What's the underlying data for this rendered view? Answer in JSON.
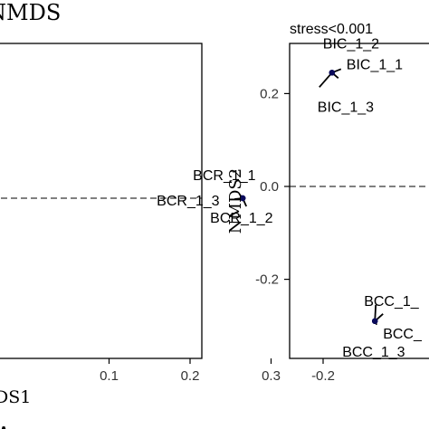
{
  "chart_data": [
    {
      "type": "scatter",
      "title": "NMDS",
      "subtitle": "",
      "xlabel": "DS1",
      "ylabel": "",
      "xlim": [
        -0.02,
        0.32
      ],
      "x_ticks": [
        0.1,
        0.2,
        0.3
      ],
      "x_tick_labels": [
        "0.1",
        "0.2",
        "0.3"
      ],
      "y_ticks": [],
      "y_tick_labels": [],
      "reference_lines": [
        {
          "axis": "y",
          "value": 0,
          "style": "dashed"
        }
      ],
      "grid": false,
      "points": [
        {
          "label": "BCR_1_1",
          "x": 0.265,
          "y": 0.0
        },
        {
          "label": "BCR_1_3",
          "x": 0.265,
          "y": 0.0
        },
        {
          "label": "BCR_1_2",
          "x": 0.265,
          "y": 0.0
        }
      ],
      "colors": {
        "point": "#0a0a5a",
        "axis": "#000000",
        "reference_line": "#000000"
      }
    },
    {
      "type": "scatter",
      "title": "",
      "subtitle": "stress<0.001",
      "xlabel": "",
      "ylabel": "NMDS2",
      "x_ticks": [
        -0.2
      ],
      "x_tick_labels": [
        "-0.2"
      ],
      "y_ticks": [
        0.2,
        0.0,
        -0.2
      ],
      "y_tick_labels": [
        "0.2",
        "0.0",
        "-0.2"
      ],
      "xlim": [
        -0.235,
        -0.02
      ],
      "ylim": [
        -0.355,
        0.315
      ],
      "reference_lines": [
        {
          "axis": "y",
          "value": 0,
          "style": "dashed"
        }
      ],
      "grid": false,
      "points": [
        {
          "label": "BIC_1_2",
          "x": -0.19,
          "y": 0.245
        },
        {
          "label": "BIC_1_1",
          "x": -0.19,
          "y": 0.245
        },
        {
          "label": "BIC_1_3",
          "x": -0.19,
          "y": 0.245
        },
        {
          "label": "BCC_1_",
          "x": -0.11,
          "y": -0.29
        },
        {
          "label": "BCC_",
          "x": -0.11,
          "y": -0.29
        },
        {
          "label": "BCC_1_3",
          "x": -0.11,
          "y": -0.29
        }
      ],
      "colors": {
        "point": "#0a0a5a",
        "axis": "#000000",
        "reference_line": "#000000"
      }
    }
  ]
}
